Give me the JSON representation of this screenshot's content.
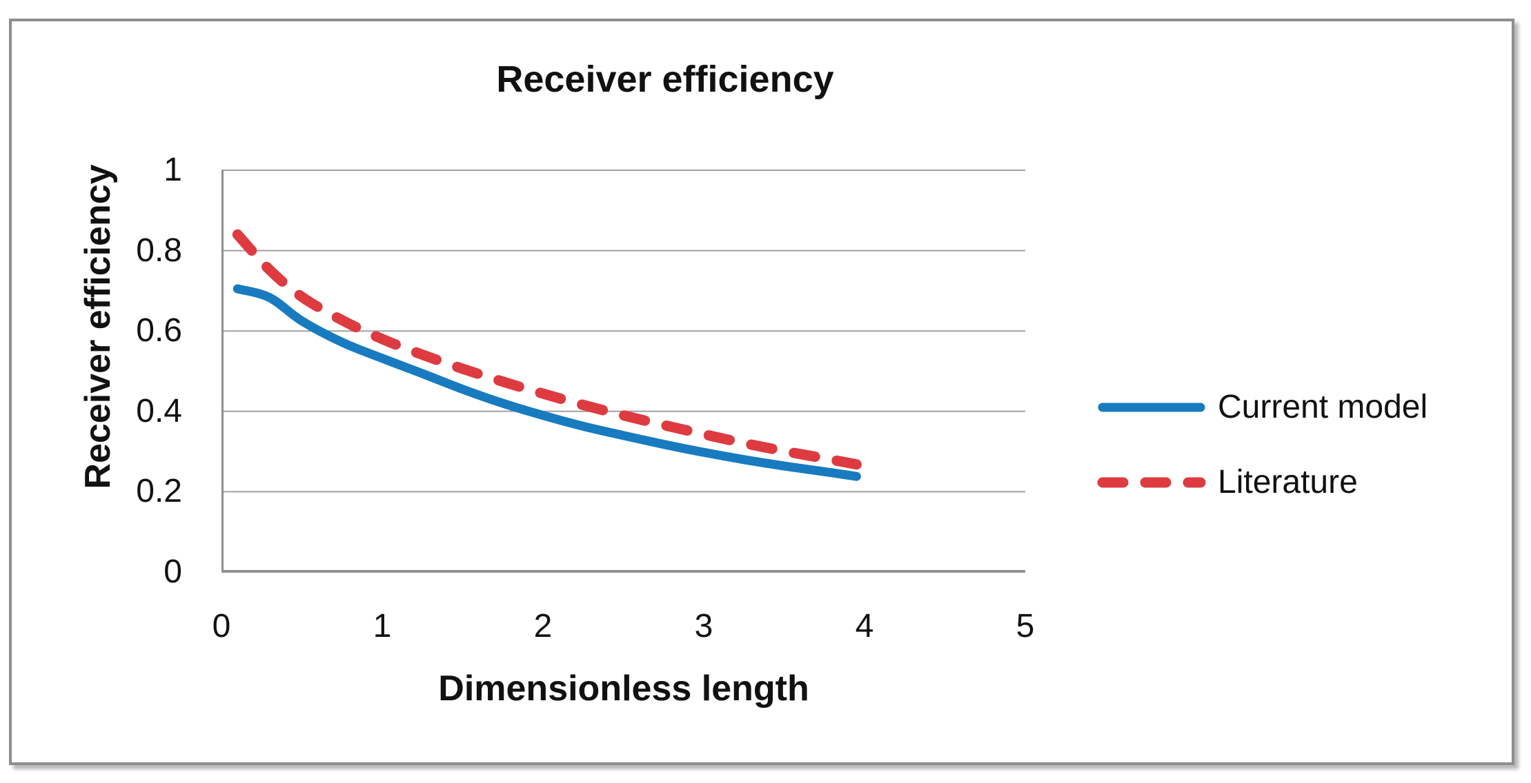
{
  "chart_data": {
    "type": "line",
    "title": "Receiver efficiency",
    "xlabel": "Dimensionless length",
    "ylabel": "Receiver efficiency",
    "xlim": [
      0,
      5
    ],
    "ylim": [
      0,
      1
    ],
    "x_ticks": [
      0,
      1,
      2,
      3,
      4,
      5
    ],
    "x_tick_labels": [
      "0",
      "1",
      "2",
      "3",
      "4",
      "5"
    ],
    "y_ticks": [
      0,
      0.2,
      0.4,
      0.6,
      0.8,
      1
    ],
    "y_tick_labels": [
      "0",
      "0.2",
      "0.4",
      "0.6",
      "0.8",
      "1"
    ],
    "grid": "horizontal",
    "legend_position": "right",
    "x": [
      0.1,
      0.3,
      0.5,
      0.75,
      1.0,
      1.25,
      1.5,
      1.75,
      2.0,
      2.25,
      2.5,
      2.75,
      3.0,
      3.25,
      3.5,
      3.75,
      3.95
    ],
    "series": [
      {
        "name": "Current model",
        "style": "solid",
        "color": "#187bc0",
        "values": [
          0.705,
          0.683,
          0.625,
          0.572,
          0.532,
          0.494,
          0.455,
          0.42,
          0.39,
          0.363,
          0.34,
          0.318,
          0.298,
          0.28,
          0.264,
          0.25,
          0.238
        ]
      },
      {
        "name": "Literature",
        "style": "dashed",
        "color": "#de3b41",
        "values": [
          0.84,
          0.752,
          0.685,
          0.627,
          0.58,
          0.541,
          0.506,
          0.474,
          0.444,
          0.416,
          0.39,
          0.366,
          0.343,
          0.321,
          0.301,
          0.283,
          0.268
        ]
      }
    ],
    "colors": {
      "gridline": "#a0a0a0",
      "axis_line": "#8f8f8f",
      "frame_border": "#8e8e8e",
      "text": "#111111",
      "background": "#ffffff"
    }
  }
}
